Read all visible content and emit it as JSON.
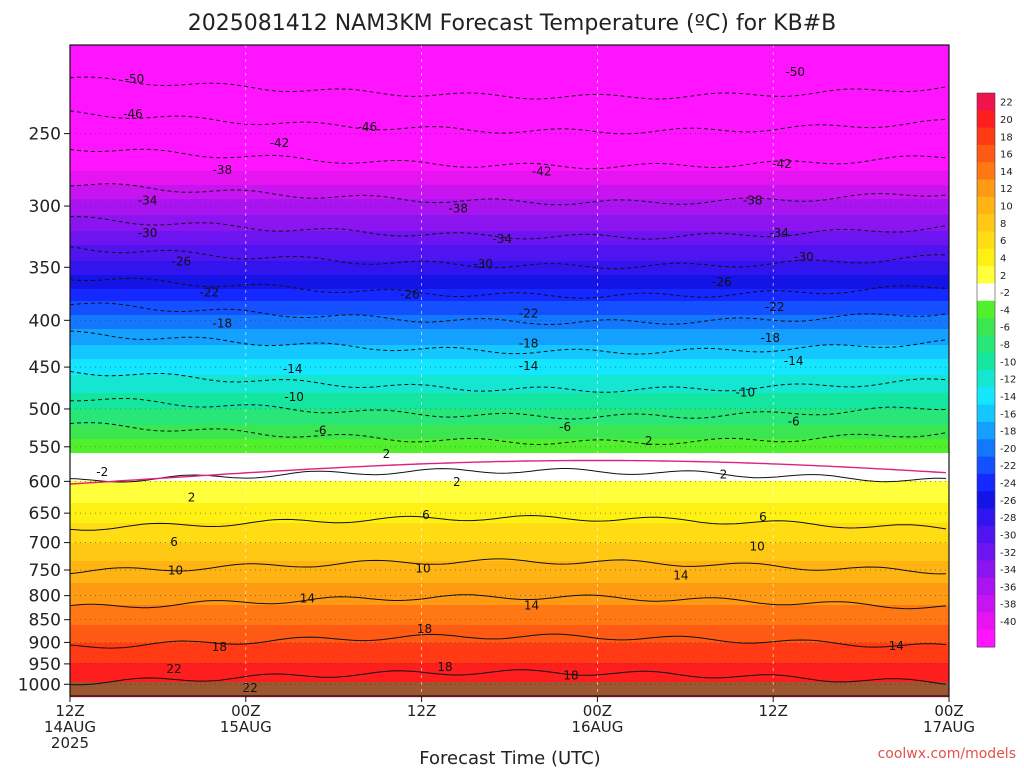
{
  "chart_data": {
    "type": "heatmap",
    "title": "2025081412 NAM3KM Forecast Temperature (ºC) for KB#B",
    "xlabel": "Forecast Time (UTC)",
    "ylabel": "",
    "x_ticks": [
      {
        "hour": 0,
        "label1": "12Z",
        "label2": "14AUG",
        "label3": "2025"
      },
      {
        "hour": 12,
        "label1": "00Z",
        "label2": "15AUG",
        "label3": ""
      },
      {
        "hour": 24,
        "label1": "12Z",
        "label2": "",
        "label3": ""
      },
      {
        "hour": 36,
        "label1": "00Z",
        "label2": "16AUG",
        "label3": ""
      },
      {
        "hour": 48,
        "label1": "12Z",
        "label2": "",
        "label3": ""
      },
      {
        "hour": 60,
        "label1": "00Z",
        "label2": "17AUG",
        "label3": ""
      }
    ],
    "xlim_hours": [
      0,
      60
    ],
    "y_axis": {
      "scale": "log-pressure",
      "unit": "hPa",
      "range": [
        200,
        1030
      ],
      "ticks": [
        250,
        300,
        350,
        400,
        450,
        500,
        550,
        600,
        650,
        700,
        750,
        800,
        850,
        900,
        950,
        1000
      ]
    },
    "grid": true,
    "colorbar": {
      "placement": "right",
      "levels": [
        22,
        20,
        18,
        16,
        14,
        12,
        10,
        8,
        6,
        4,
        2,
        -2,
        -4,
        -6,
        -8,
        -10,
        -12,
        -14,
        -16,
        -18,
        -20,
        -22,
        -24,
        -26,
        -28,
        -30,
        -32,
        -34,
        -36,
        -38,
        -40
      ],
      "colors": [
        "#f0144c",
        "#ff1e1e",
        "#ff3a14",
        "#ff5a14",
        "#ff7814",
        "#ff9a14",
        "#ffb414",
        "#ffc814",
        "#ffdc14",
        "#fff014",
        "#ffff3c",
        "#ffffff",
        "#50f02c",
        "#3ce650",
        "#28e678",
        "#14e6a0",
        "#14e6d2",
        "#14e6ff",
        "#14c8ff",
        "#14a0ff",
        "#1478ff",
        "#1450ff",
        "#1428ff",
        "#1414e6",
        "#3214f0",
        "#5014f0",
        "#6e14f0",
        "#8c14f0",
        "#aa14f0",
        "#c814f0",
        "#e614f0",
        "#ff14ff"
      ]
    },
    "profile": [
      {
        "p": 200,
        "t": -56
      },
      {
        "p": 230,
        "t": -49
      },
      {
        "p": 250,
        "t": -45
      },
      {
        "p": 275,
        "t": -40
      },
      {
        "p": 300,
        "t": -35
      },
      {
        "p": 325,
        "t": -31
      },
      {
        "p": 350,
        "t": -27
      },
      {
        "p": 375,
        "t": -23
      },
      {
        "p": 400,
        "t": -19
      },
      {
        "p": 450,
        "t": -13
      },
      {
        "p": 500,
        "t": -8
      },
      {
        "p": 550,
        "t": -3
      },
      {
        "p": 600,
        "t": 2
      },
      {
        "p": 650,
        "t": 5
      },
      {
        "p": 700,
        "t": 8
      },
      {
        "p": 750,
        "t": 11
      },
      {
        "p": 800,
        "t": 13
      },
      {
        "p": 850,
        "t": 15.5
      },
      {
        "p": 900,
        "t": 18
      },
      {
        "p": 950,
        "t": 20
      },
      {
        "p": 1000,
        "t": 22
      },
      {
        "p": 1030,
        "t": 23
      }
    ],
    "contour_lines": [
      {
        "label": "-50",
        "p": 220
      },
      {
        "label": "-46",
        "p": 240
      },
      {
        "label": "-42",
        "p": 262
      },
      {
        "label": "-38",
        "p": 287
      },
      {
        "label": "-34",
        "p": 313
      },
      {
        "label": "-30",
        "p": 337
      },
      {
        "label": "-26",
        "p": 363
      },
      {
        "label": "-22",
        "p": 388
      },
      {
        "label": "-18",
        "p": 418
      },
      {
        "label": "-14",
        "p": 460
      },
      {
        "label": "-10",
        "p": 492
      },
      {
        "label": "-6",
        "p": 525
      },
      {
        "label": "2",
        "p": 593
      },
      {
        "label": "6",
        "p": 668
      },
      {
        "label": "10",
        "p": 745
      },
      {
        "label": "14",
        "p": 815
      },
      {
        "label": "18",
        "p": 900
      },
      {
        "label": "22",
        "p": 985
      }
    ],
    "contour_labels": [
      {
        "text": "-50",
        "hour": 4.4,
        "p": 218
      },
      {
        "text": "-50",
        "hour": 49.5,
        "p": 214
      },
      {
        "text": "-46",
        "hour": 4.3,
        "p": 238
      },
      {
        "text": "-46",
        "hour": 20.3,
        "p": 246
      },
      {
        "text": "-42",
        "hour": 14.3,
        "p": 256
      },
      {
        "text": "-42",
        "hour": 32.2,
        "p": 275
      },
      {
        "text": "-42",
        "hour": 48.6,
        "p": 270
      },
      {
        "text": "-38",
        "hour": 10.4,
        "p": 274
      },
      {
        "text": "-38",
        "hour": 26.5,
        "p": 302
      },
      {
        "text": "-38",
        "hour": 46.6,
        "p": 296
      },
      {
        "text": "-34",
        "hour": 5.3,
        "p": 296
      },
      {
        "text": "-34",
        "hour": 29.5,
        "p": 326
      },
      {
        "text": "-34",
        "hour": 48.4,
        "p": 321
      },
      {
        "text": "-30",
        "hour": 5.3,
        "p": 321
      },
      {
        "text": "-30",
        "hour": 28.2,
        "p": 347
      },
      {
        "text": "-30",
        "hour": 50.1,
        "p": 341
      },
      {
        "text": "-26",
        "hour": 7.6,
        "p": 345
      },
      {
        "text": "-26",
        "hour": 23.2,
        "p": 375
      },
      {
        "text": "-26",
        "hour": 44.5,
        "p": 363
      },
      {
        "text": "-22",
        "hour": 9.5,
        "p": 373
      },
      {
        "text": "-22",
        "hour": 31.3,
        "p": 393
      },
      {
        "text": "-22",
        "hour": 48.1,
        "p": 387
      },
      {
        "text": "-18",
        "hour": 10.4,
        "p": 403
      },
      {
        "text": "-18",
        "hour": 31.3,
        "p": 424
      },
      {
        "text": "-18",
        "hour": 47.8,
        "p": 418
      },
      {
        "text": "-14",
        "hour": 15.2,
        "p": 452
      },
      {
        "text": "-14",
        "hour": 31.3,
        "p": 449
      },
      {
        "text": "-14",
        "hour": 49.4,
        "p": 443
      },
      {
        "text": "-10",
        "hour": 15.3,
        "p": 485
      },
      {
        "text": "-10",
        "hour": 46.1,
        "p": 480
      },
      {
        "text": "-6",
        "hour": 17.1,
        "p": 528
      },
      {
        "text": "-6",
        "hour": 33.8,
        "p": 523
      },
      {
        "text": "-6",
        "hour": 49.4,
        "p": 516
      },
      {
        "text": "2",
        "hour": 21.6,
        "p": 560
      },
      {
        "text": "2",
        "hour": 39.5,
        "p": 542
      },
      {
        "text": "-2",
        "hour": 2.2,
        "p": 586
      },
      {
        "text": "2",
        "hour": 26.4,
        "p": 601
      },
      {
        "text": "2",
        "hour": 44.6,
        "p": 590
      },
      {
        "text": "2",
        "hour": 8.3,
        "p": 625
      },
      {
        "text": "6",
        "hour": 24.3,
        "p": 653
      },
      {
        "text": "6",
        "hour": 47.3,
        "p": 656
      },
      {
        "text": "6",
        "hour": 7.1,
        "p": 699
      },
      {
        "text": "10",
        "hour": 24.1,
        "p": 747
      },
      {
        "text": "10",
        "hour": 46.9,
        "p": 707
      },
      {
        "text": "10",
        "hour": 7.2,
        "p": 751
      },
      {
        "text": "14",
        "hour": 16.2,
        "p": 806
      },
      {
        "text": "14",
        "hour": 31.5,
        "p": 820
      },
      {
        "text": "14",
        "hour": 41.7,
        "p": 760
      },
      {
        "text": "14",
        "hour": 56.4,
        "p": 908
      },
      {
        "text": "18",
        "hour": 10.2,
        "p": 910
      },
      {
        "text": "18",
        "hour": 24.2,
        "p": 870
      },
      {
        "text": "18",
        "hour": 25.6,
        "p": 958
      },
      {
        "text": "18",
        "hour": 34.2,
        "p": 978
      },
      {
        "text": "22",
        "hour": 7.1,
        "p": 962
      },
      {
        "text": "22",
        "hour": 12.3,
        "p": 1010
      }
    ]
  },
  "credit": "coolwx.com/models"
}
